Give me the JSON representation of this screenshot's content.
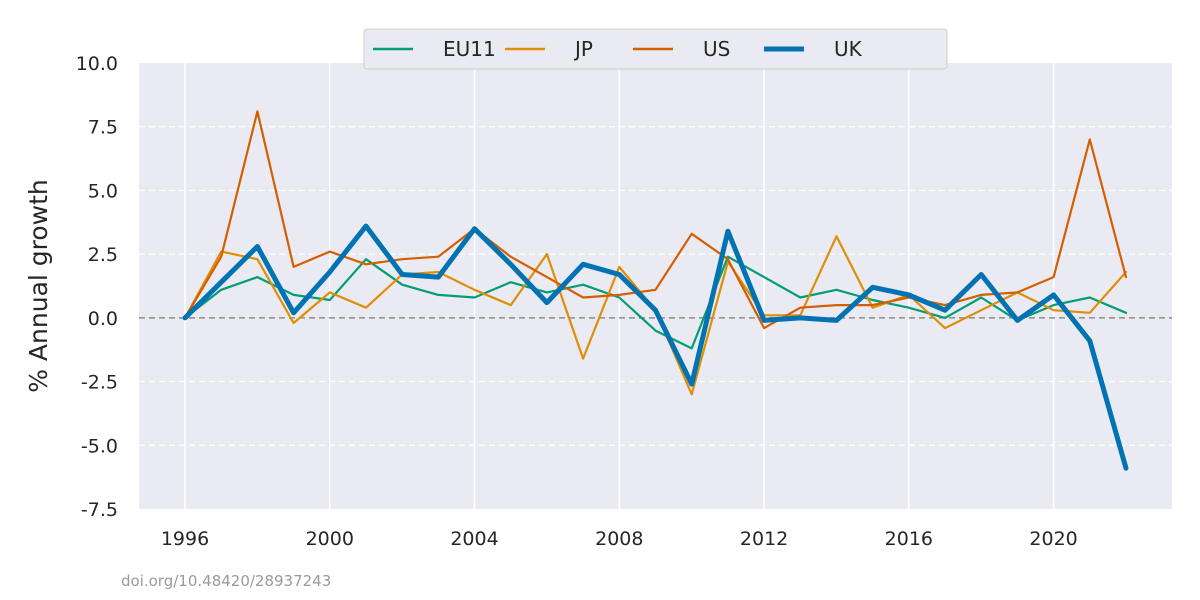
{
  "chart_data": {
    "type": "line",
    "title": "",
    "xlabel": "",
    "ylabel": "% Annual growth",
    "ylim": [
      -7.5,
      10.0
    ],
    "y_ticks": [
      "10.0",
      "7.5",
      "5.0",
      "2.5",
      "0.0",
      "-2.5",
      "-5.0",
      "-7.5"
    ],
    "x_ticks": [
      "1996",
      "2000",
      "2004",
      "2008",
      "2012",
      "2016",
      "2020"
    ],
    "grid": true,
    "legend_placement": "top-center",
    "x": [
      1996,
      1997,
      1998,
      1999,
      2000,
      2001,
      2002,
      2003,
      2004,
      2005,
      2006,
      2007,
      2008,
      2009,
      2010,
      2011,
      2012,
      2013,
      2014,
      2015,
      2016,
      2017,
      2018,
      2019,
      2020,
      2021,
      2022
    ],
    "series": [
      {
        "name": "EU11",
        "color": "#029e73",
        "values": [
          0.0,
          1.1,
          1.6,
          0.9,
          0.7,
          2.3,
          1.3,
          0.9,
          0.8,
          1.4,
          1.0,
          1.3,
          0.8,
          -0.5,
          -1.2,
          2.4,
          1.6,
          0.8,
          1.1,
          0.7,
          0.4,
          0.0,
          0.8,
          -0.1,
          0.5,
          0.8,
          0.2
        ]
      },
      {
        "name": "JP",
        "color": "#de8f05",
        "values": [
          0.0,
          2.6,
          2.3,
          -0.2,
          1.0,
          0.4,
          1.7,
          1.8,
          1.1,
          0.5,
          2.5,
          -1.6,
          2.0,
          0.3,
          -3.0,
          2.2,
          0.1,
          0.1,
          3.2,
          0.4,
          0.9,
          -0.4,
          0.3,
          1.0,
          0.3,
          0.2,
          1.8
        ]
      },
      {
        "name": "US",
        "color": "#d55e00",
        "values": [
          0.0,
          2.4,
          8.1,
          2.0,
          2.6,
          2.1,
          2.3,
          2.4,
          3.5,
          2.4,
          1.6,
          0.8,
          0.9,
          1.1,
          3.3,
          2.3,
          -0.4,
          0.4,
          0.5,
          0.5,
          0.8,
          0.5,
          0.9,
          1.0,
          1.6,
          7.0,
          1.6
        ]
      },
      {
        "name": "UK",
        "color": "#0173b2",
        "values": [
          0.0,
          1.4,
          2.8,
          0.2,
          1.8,
          3.6,
          1.7,
          1.6,
          3.5,
          2.1,
          0.6,
          2.1,
          1.7,
          0.3,
          -2.6,
          3.4,
          -0.1,
          0.0,
          -0.1,
          1.2,
          0.9,
          0.3,
          1.7,
          -0.1,
          0.9,
          -0.9,
          -5.9
        ]
      }
    ]
  },
  "footer": {
    "doi": "doi.org/10.48420/28937243"
  }
}
